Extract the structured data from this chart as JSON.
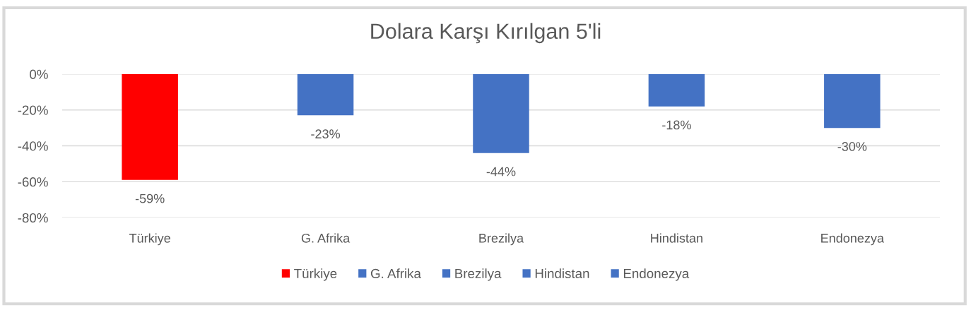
{
  "chart_data": {
    "type": "bar",
    "title": "Dolara Karşı Kırılgan 5'li",
    "categories": [
      "Türkiye",
      "G. Afrika",
      "Brezilya",
      "Hindistan",
      "Endonezya"
    ],
    "series": [
      {
        "name": "Türkiye",
        "color": "#ff0000",
        "values": [
          -59,
          null,
          null,
          null,
          null
        ],
        "value_labels": [
          "-59%",
          null,
          null,
          null,
          null
        ]
      },
      {
        "name": "G. Afrika",
        "color": "#4472c4",
        "values": [
          null,
          -23,
          null,
          null,
          null
        ],
        "value_labels": [
          null,
          "-23%",
          null,
          null,
          null
        ]
      },
      {
        "name": "Brezilya",
        "color": "#4472c4",
        "values": [
          null,
          null,
          -44,
          null,
          null
        ],
        "value_labels": [
          null,
          null,
          "-44%",
          null,
          null
        ]
      },
      {
        "name": "Hindistan",
        "color": "#4472c4",
        "values": [
          null,
          null,
          null,
          -18,
          null
        ],
        "value_labels": [
          null,
          null,
          null,
          "-18%",
          null
        ]
      },
      {
        "name": "Endonezya",
        "color": "#4472c4",
        "values": [
          null,
          null,
          null,
          null,
          -30
        ],
        "value_labels": [
          null,
          null,
          null,
          null,
          "-30%"
        ]
      }
    ],
    "ylim": [
      -80,
      0
    ],
    "yticks": [
      {
        "value": 0,
        "label": "0%"
      },
      {
        "value": -20,
        "label": "-20%"
      },
      {
        "value": -40,
        "label": "-40%"
      },
      {
        "value": -60,
        "label": "-60%"
      },
      {
        "value": -80,
        "label": "-80%"
      }
    ],
    "grid": "y",
    "legend": "bottom"
  }
}
